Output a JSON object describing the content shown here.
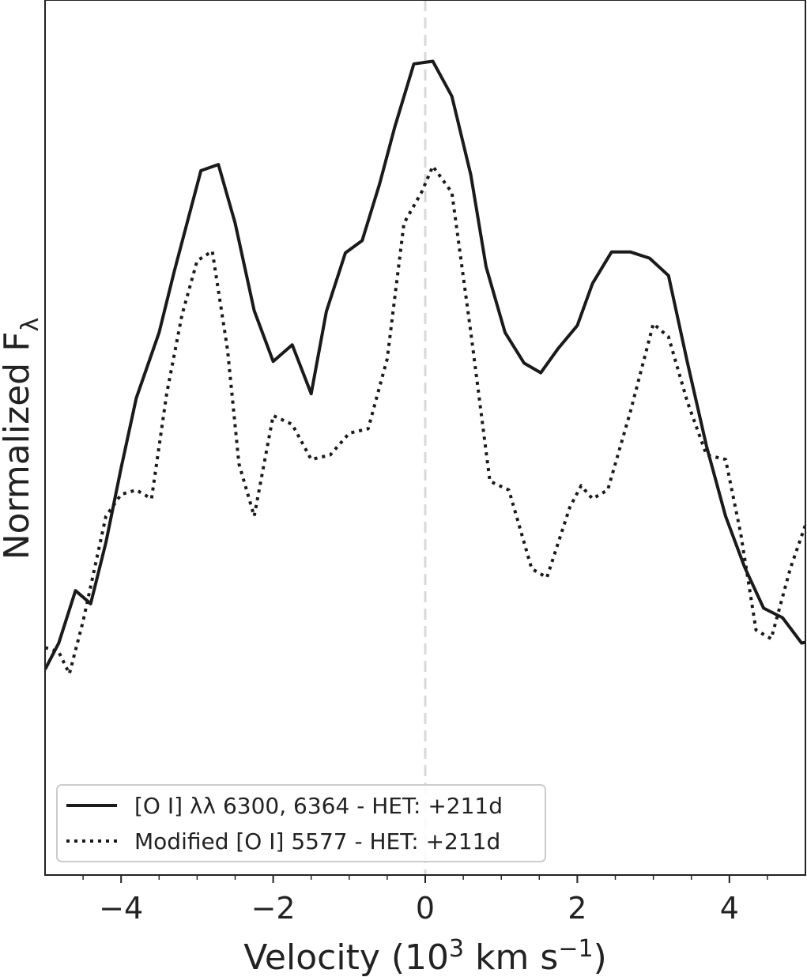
{
  "chart_data": {
    "type": "line",
    "title": "",
    "xlabel": "Velocity (10",
    "xlabel_sup1": "3",
    "xlabel_mid": " km s",
    "xlabel_sup2": "−1",
    "xlabel_end": ")",
    "ylabel": "Normalized F",
    "ylabel_sub": "λ",
    "xlim": [
      -5,
      5
    ],
    "ylim": [
      0,
      1
    ],
    "x_ticks": [
      -4,
      -2,
      0,
      2,
      4
    ],
    "x_tick_labels": [
      "−4",
      "−2",
      "0",
      "2",
      "4"
    ],
    "x_minor_ticks": [
      -4.5,
      -3.5,
      -3,
      -2.5,
      -1.5,
      -1,
      -0.5,
      0.5,
      1,
      1.5,
      2.5,
      3,
      3.5,
      4.5
    ],
    "y_ticks": [],
    "grid": false,
    "legend_position": "lower-left",
    "reference_line": {
      "x": 0,
      "style": "dashed",
      "color": "#d9d9d9"
    },
    "series": [
      {
        "name": "[O I] λλ 6300, 6364 - HET: +211d",
        "style": "solid",
        "color": "#1a1a1a",
        "x": [
          -5.0,
          -4.82,
          -4.6,
          -4.4,
          -4.2,
          -4.0,
          -3.8,
          -3.5,
          -3.3,
          -2.95,
          -2.72,
          -2.5,
          -2.25,
          -2.0,
          -1.75,
          -1.5,
          -1.3,
          -1.05,
          -0.83,
          -0.6,
          -0.4,
          -0.15,
          0.1,
          0.35,
          0.6,
          0.8,
          1.05,
          1.3,
          1.52,
          1.75,
          2.0,
          2.2,
          2.45,
          2.7,
          2.95,
          3.2,
          3.45,
          3.7,
          3.95,
          4.2,
          4.45,
          4.7,
          4.95,
          5.0
        ],
        "y": [
          0.235,
          0.265,
          0.325,
          0.31,
          0.38,
          0.465,
          0.545,
          0.62,
          0.69,
          0.805,
          0.812,
          0.745,
          0.645,
          0.587,
          0.606,
          0.55,
          0.644,
          0.711,
          0.725,
          0.79,
          0.855,
          0.927,
          0.93,
          0.89,
          0.8,
          0.695,
          0.62,
          0.585,
          0.574,
          0.602,
          0.628,
          0.676,
          0.712,
          0.712,
          0.705,
          0.685,
          0.585,
          0.49,
          0.41,
          0.352,
          0.305,
          0.294,
          0.265,
          0.266
        ]
      },
      {
        "name": "Modified [O I] 5577 - HET: +211d",
        "style": "dotted",
        "color": "#1a1a1a",
        "x": [
          -5.0,
          -4.82,
          -4.68,
          -4.5,
          -4.2,
          -4.0,
          -3.8,
          -3.6,
          -3.4,
          -3.2,
          -3.0,
          -2.8,
          -2.6,
          -2.45,
          -2.25,
          -2.0,
          -1.75,
          -1.5,
          -1.25,
          -1.0,
          -0.75,
          -0.5,
          -0.28,
          -0.05,
          0.1,
          0.35,
          0.6,
          0.85,
          1.1,
          1.4,
          1.6,
          1.9,
          2.05,
          2.2,
          2.4,
          2.7,
          3.0,
          3.2,
          3.45,
          3.7,
          3.95,
          4.15,
          4.35,
          4.55,
          4.8,
          5.0
        ],
        "y": [
          0.26,
          0.255,
          0.23,
          0.29,
          0.41,
          0.435,
          0.44,
          0.43,
          0.55,
          0.64,
          0.702,
          0.713,
          0.6,
          0.47,
          0.41,
          0.525,
          0.515,
          0.475,
          0.48,
          0.505,
          0.51,
          0.59,
          0.745,
          0.78,
          0.81,
          0.78,
          0.62,
          0.45,
          0.44,
          0.35,
          0.34,
          0.42,
          0.445,
          0.43,
          0.44,
          0.53,
          0.63,
          0.615,
          0.54,
          0.48,
          0.475,
          0.39,
          0.28,
          0.27,
          0.35,
          0.4
        ]
      }
    ]
  }
}
